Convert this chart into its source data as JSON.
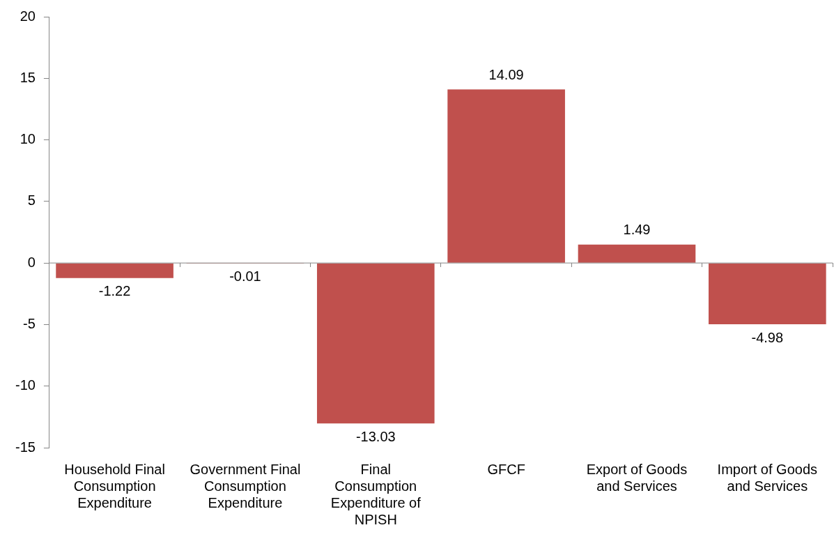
{
  "chart_data": {
    "type": "bar",
    "categories": [
      "Household Final Consumption Expenditure",
      "Government Final Consumption Expenditure",
      "Final Consumption Expenditure of NPISH",
      "GFCF",
      "Export of Goods and Services",
      "Import of Goods and Services"
    ],
    "values": [
      -1.22,
      -0.01,
      -13.03,
      14.09,
      1.49,
      -4.98
    ],
    "color": "#c0504d",
    "ylim": [
      -15,
      20
    ],
    "yticks": [
      -15,
      -10,
      -5,
      0,
      5,
      10,
      15,
      20
    ],
    "ref_lines": [
      {
        "axis": "y",
        "value": 0,
        "color": "#868686"
      }
    ],
    "data_labels": true,
    "grid": false,
    "legend": false
  }
}
